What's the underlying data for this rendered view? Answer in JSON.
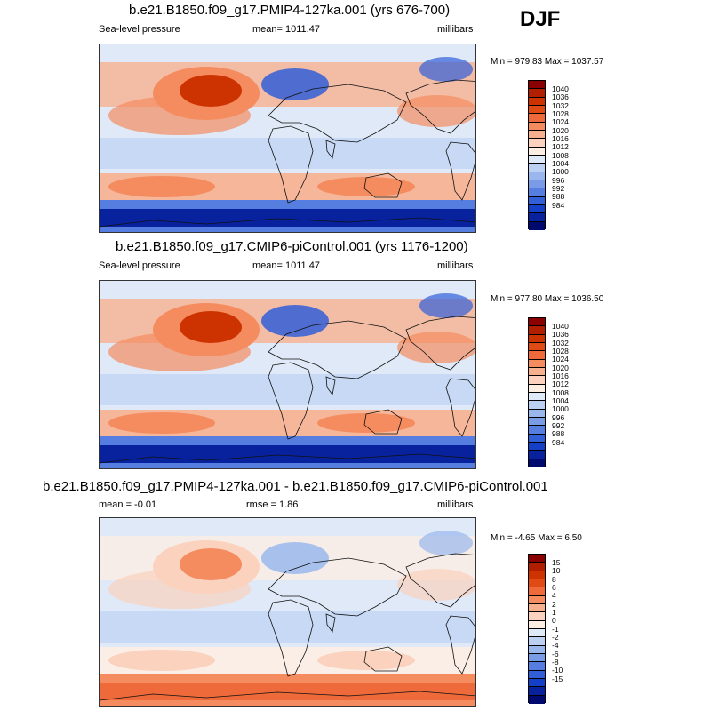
{
  "season": "DJF",
  "panels": [
    {
      "title": "b.e21.B1850.f09_g17.PMIP4-127ka.001 (yrs 676-700)",
      "left": "Sea-level pressure",
      "center": "mean= 1011.47",
      "right": "millibars",
      "minmax": "Min = 979.83 Max = 1037.57",
      "colors": [
        "#8b0000",
        "#b21e00",
        "#cc3300",
        "#e04a14",
        "#ef6a3a",
        "#f48c5f",
        "#f7b08e",
        "#fad2bd",
        "#fdeee4",
        "#dfe9f7",
        "#bcd1f2",
        "#99b7ec",
        "#7a9be6",
        "#567de0",
        "#315fd8",
        "#1440c8",
        "#08229e",
        "#000a6e"
      ],
      "labels": [
        "1040",
        "1036",
        "1032",
        "1028",
        "1024",
        "1020",
        "1016",
        "1012",
        "1008",
        "1004",
        "1000",
        "996",
        "992",
        "988",
        "984"
      ],
      "map_colors": {
        "land_high": "#cc3300",
        "mid_high": "#f48c5f",
        "low": "#f7b08e",
        "ocean": "#dfe9f7",
        "aleutian": "#315fd8",
        "southern": "#08229e",
        "southern_edge": "#567de0",
        "tropics": "#bcd1f2"
      }
    },
    {
      "title": "b.e21.B1850.f09_g17.CMIP6-piControl.001 (yrs 1176-1200)",
      "left": "Sea-level pressure",
      "center": "mean= 1011.47",
      "right": "millibars",
      "minmax": "Min = 977.80 Max = 1036.50",
      "colors": [
        "#8b0000",
        "#b21e00",
        "#cc3300",
        "#e04a14",
        "#ef6a3a",
        "#f48c5f",
        "#f7b08e",
        "#fad2bd",
        "#fdeee4",
        "#dfe9f7",
        "#bcd1f2",
        "#99b7ec",
        "#7a9be6",
        "#567de0",
        "#315fd8",
        "#1440c8",
        "#08229e",
        "#000a6e"
      ],
      "labels": [
        "1040",
        "1036",
        "1032",
        "1028",
        "1024",
        "1020",
        "1016",
        "1012",
        "1008",
        "1004",
        "1000",
        "996",
        "992",
        "988",
        "984"
      ],
      "map_colors": {
        "land_high": "#cc3300",
        "mid_high": "#f48c5f",
        "low": "#f7b08e",
        "ocean": "#dfe9f7",
        "aleutian": "#315fd8",
        "southern": "#08229e",
        "southern_edge": "#567de0",
        "tropics": "#bcd1f2"
      }
    },
    {
      "title": "b.e21.B1850.f09_g17.PMIP4-127ka.001 - b.e21.B1850.f09_g17.CMIP6-piControl.001",
      "left": "mean =  -0.01",
      "center": "rmse =   1.86",
      "right": "millibars",
      "minmax": "Min =  -4.65 Max =   6.50",
      "colors": [
        "#8b0000",
        "#b21e00",
        "#cc3300",
        "#e04a14",
        "#ef6a3a",
        "#f48c5f",
        "#f7b08e",
        "#fad2bd",
        "#fdeee4",
        "#dfe9f7",
        "#bcd1f2",
        "#99b7ec",
        "#7a9be6",
        "#567de0",
        "#315fd8",
        "#1440c8",
        "#08229e",
        "#000a6e"
      ],
      "labels": [
        "15",
        "10",
        "8",
        "6",
        "4",
        "2",
        "1",
        "0",
        "-1",
        "-2",
        "-4",
        "-6",
        "-8",
        "-10",
        "-15"
      ],
      "map_colors": {
        "land_high": "#f48c5f",
        "mid_high": "#fad2bd",
        "low": "#fdeee4",
        "ocean": "#dfe9f7",
        "aleutian": "#99b7ec",
        "southern": "#ef6a3a",
        "southern_edge": "#f48c5f",
        "tropics": "#bcd1f2"
      }
    }
  ]
}
